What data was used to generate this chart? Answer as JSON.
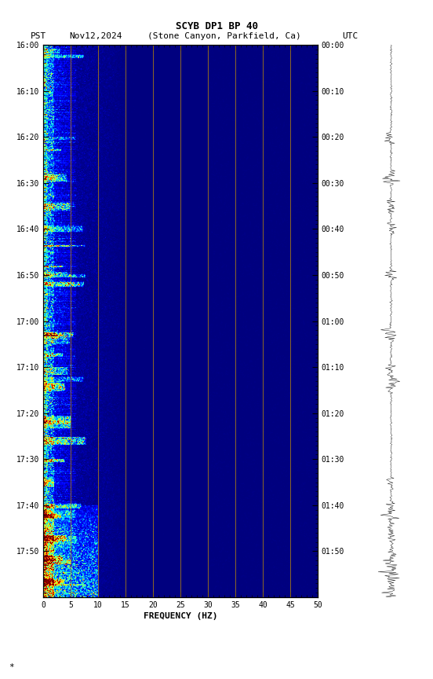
{
  "title_line1": "SCYB DP1 BP 40",
  "title_line2_pst": "PST",
  "title_line2_date": "Nov12,2024",
  "title_line2_loc": "(Stone Canyon, Parkfield, Ca)",
  "title_line2_utc": "UTC",
  "xlabel": "FREQUENCY (HZ)",
  "freq_min": 0,
  "freq_max": 50,
  "freq_ticks": [
    0,
    5,
    10,
    15,
    20,
    25,
    30,
    35,
    40,
    45,
    50
  ],
  "freq_labels": [
    "0",
    "5",
    "10",
    "15",
    "20",
    "25",
    "30",
    "35",
    "40",
    "45",
    "50"
  ],
  "time_ticks_left": [
    "16:00",
    "16:10",
    "16:20",
    "16:30",
    "16:40",
    "16:50",
    "17:00",
    "17:10",
    "17:20",
    "17:30",
    "17:40",
    "17:50"
  ],
  "time_ticks_right": [
    "00:00",
    "00:10",
    "00:20",
    "00:30",
    "00:40",
    "00:50",
    "01:00",
    "01:10",
    "01:20",
    "01:30",
    "01:40",
    "01:50"
  ],
  "vertical_line_freqs": [
    5,
    10,
    15,
    20,
    25,
    30,
    35,
    40,
    45
  ],
  "vertical_line_color": "#b8860b",
  "fig_width": 5.52,
  "fig_height": 8.64,
  "colormap": "jet",
  "n_time": 720,
  "n_freq": 500
}
